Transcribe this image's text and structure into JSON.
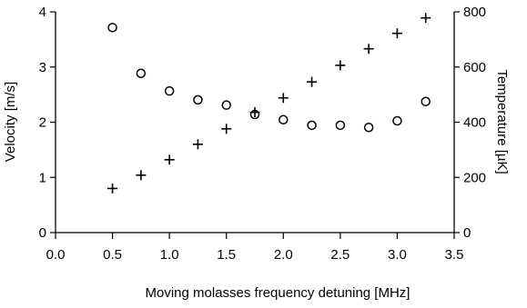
{
  "chart_data": {
    "type": "scatter",
    "xlabel": "Moving molasses frequency detuning [MHz]",
    "ylabel_left": "Velocity [m/s]",
    "ylabel_right": "Temperature [µK]",
    "xlim": [
      0,
      3.5
    ],
    "ylim_left": [
      0,
      4
    ],
    "ylim_right": [
      0,
      800
    ],
    "x_ticks": [
      "0.0",
      "0.5",
      "1.0",
      "1.5",
      "2.0",
      "2.5",
      "3.0",
      "3.5"
    ],
    "y_left_ticks": [
      "0",
      "1",
      "2",
      "3",
      "4"
    ],
    "y_right_ticks": [
      "0",
      "200",
      "400",
      "600",
      "800"
    ],
    "grid": false,
    "legend": "none",
    "series": [
      {
        "marker": "circle",
        "axis": "right",
        "x": [
          0.5,
          0.75,
          1.0,
          1.25,
          1.5,
          1.75,
          2.0,
          2.25,
          2.5,
          2.75,
          3.0,
          3.25
        ],
        "y": [
          743,
          577,
          513,
          481,
          462,
          428,
          409,
          389,
          389,
          381,
          405,
          475
        ]
      },
      {
        "marker": "plus",
        "axis": "left",
        "x": [
          0.5,
          0.75,
          1.0,
          1.25,
          1.5,
          1.75,
          2.0,
          2.25,
          2.5,
          2.75,
          3.0,
          3.25
        ],
        "y": [
          0.8,
          1.04,
          1.32,
          1.6,
          1.88,
          2.18,
          2.44,
          2.73,
          3.03,
          3.33,
          3.61,
          3.89
        ]
      }
    ],
    "colors": {
      "foreground": "#000000",
      "background": "#ffffff"
    }
  }
}
